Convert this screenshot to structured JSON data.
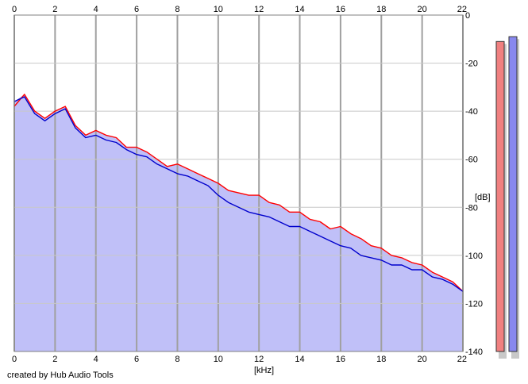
{
  "chart_data": {
    "type": "line",
    "xlabel": "[kHz]",
    "ylabel": "[dB]",
    "xlim": [
      0,
      22
    ],
    "ylim": [
      -140,
      0
    ],
    "x_ticks": [
      "0",
      "2",
      "4",
      "6",
      "8",
      "10",
      "12",
      "14",
      "16",
      "18",
      "20",
      "22"
    ],
    "y_ticks": [
      "0",
      "-20",
      "-40",
      "-60",
      "-80",
      "-100",
      "-120",
      "-140"
    ],
    "grid": true,
    "x": [
      0,
      0.5,
      1,
      1.5,
      2,
      2.5,
      3,
      3.5,
      4,
      4.5,
      5,
      5.5,
      6,
      6.5,
      7,
      7.5,
      8,
      8.5,
      9,
      9.5,
      10,
      10.5,
      11,
      11.5,
      12,
      12.5,
      13,
      13.5,
      14,
      14.5,
      15,
      15.5,
      16,
      16.5,
      17,
      17.5,
      18,
      18.5,
      19,
      19.5,
      20,
      20.5,
      21,
      21.5,
      22
    ],
    "series": [
      {
        "color": "#ff0000",
        "values": [
          -38,
          -33,
          -40,
          -43,
          -40,
          -38,
          -46,
          -50,
          -48,
          -50,
          -51,
          -55,
          -55,
          -57,
          -60,
          -63,
          -62,
          -64,
          -66,
          -68,
          -70,
          -73,
          -74,
          -75,
          -75,
          -78,
          -79,
          -82,
          -82,
          -85,
          -86,
          -89,
          -88,
          -91,
          -93,
          -96,
          -97,
          -100,
          -101,
          -103,
          -104,
          -107,
          -109,
          -111,
          -115
        ]
      },
      {
        "color": "#0000cc",
        "values": [
          -36,
          -34,
          -41,
          -44,
          -41,
          -39,
          -47,
          -51,
          -50,
          -52,
          -53,
          -56,
          -58,
          -59,
          -62,
          -64,
          -66,
          -67,
          -69,
          -71,
          -75,
          -78,
          -80,
          -82,
          -83,
          -84,
          -86,
          -88,
          -88,
          -90,
          -92,
          -94,
          -96,
          -97,
          -100,
          -101,
          -102,
          -104,
          -104,
          -106,
          -106,
          -109,
          -110,
          -112,
          -115
        ]
      }
    ],
    "fill_color": "#c0c0f8",
    "level_meters": [
      {
        "color": "#f08080",
        "value": -11
      },
      {
        "color": "#8888ee",
        "value": -9
      }
    ]
  },
  "credit": "created by Hub Audio Tools"
}
